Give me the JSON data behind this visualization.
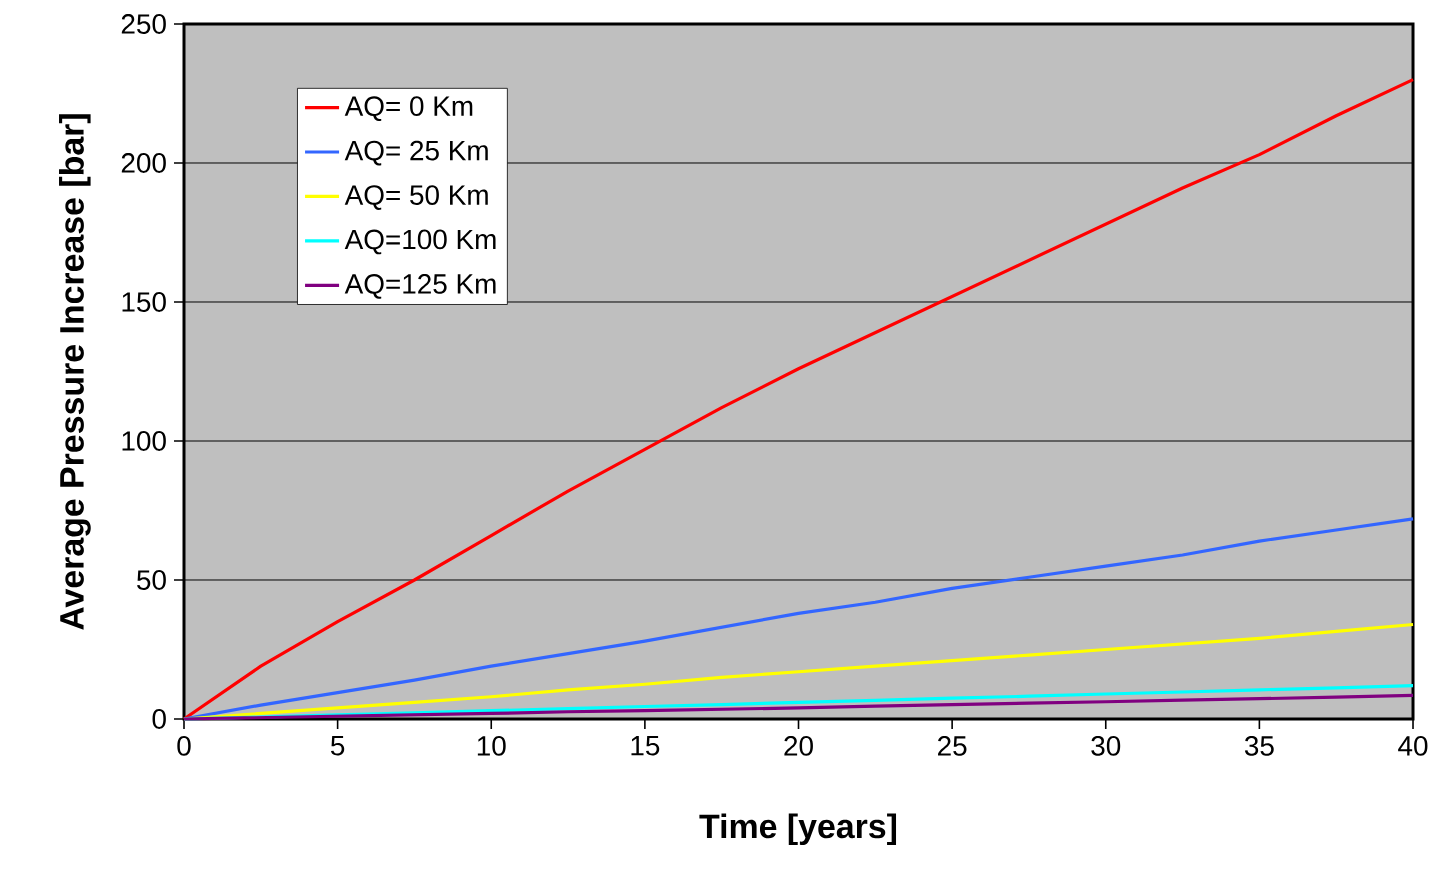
{
  "chart_data": {
    "type": "line",
    "xlabel": "Time [years]",
    "ylabel": "Average Pressure Increase [bar]",
    "xlim": [
      0,
      40
    ],
    "ylim": [
      0,
      250
    ],
    "xticks": [
      0,
      5,
      10,
      15,
      20,
      25,
      30,
      35,
      40
    ],
    "yticks": [
      0,
      50,
      100,
      150,
      200,
      250
    ],
    "grid": "y",
    "legend": "top left",
    "marker": "none",
    "line_style": "solid",
    "x": [
      0,
      2.5,
      5,
      7.5,
      10,
      12.5,
      15,
      17.5,
      20,
      22.5,
      25,
      27.5,
      30,
      32.5,
      35,
      37.5,
      40
    ],
    "series": [
      {
        "name": "AQ=  0  Km",
        "color": "#ff0000",
        "values": [
          0,
          19,
          35,
          50,
          66,
          82,
          97,
          112,
          126,
          139,
          152,
          165,
          178,
          191,
          203,
          217,
          230
        ]
      },
      {
        "name": "AQ= 25 Km",
        "color": "#3366ff",
        "values": [
          0,
          5,
          9.5,
          14,
          19,
          23.5,
          28,
          33,
          38,
          42,
          47,
          51,
          55,
          59,
          64,
          68,
          72
        ]
      },
      {
        "name": "AQ= 50 Km",
        "color": "#ffff00",
        "values": [
          0,
          2,
          4,
          6,
          8,
          10.5,
          12.5,
          15,
          17,
          19,
          21,
          23,
          25,
          27,
          29,
          31.5,
          34
        ]
      },
      {
        "name": "AQ=100 Km",
        "color": "#00ffff",
        "values": [
          0,
          0.7,
          1.5,
          2.2,
          3,
          3.7,
          4.5,
          5.2,
          6,
          6.7,
          7.5,
          8.2,
          9,
          9.7,
          10.5,
          11.2,
          12
        ]
      },
      {
        "name": "AQ=125 Km",
        "color": "#800080",
        "values": [
          0,
          0.5,
          1,
          1.5,
          2,
          2.6,
          3,
          3.5,
          4,
          4.6,
          5.2,
          5.7,
          6.2,
          6.8,
          7.3,
          7.9,
          8.5
        ]
      }
    ]
  }
}
